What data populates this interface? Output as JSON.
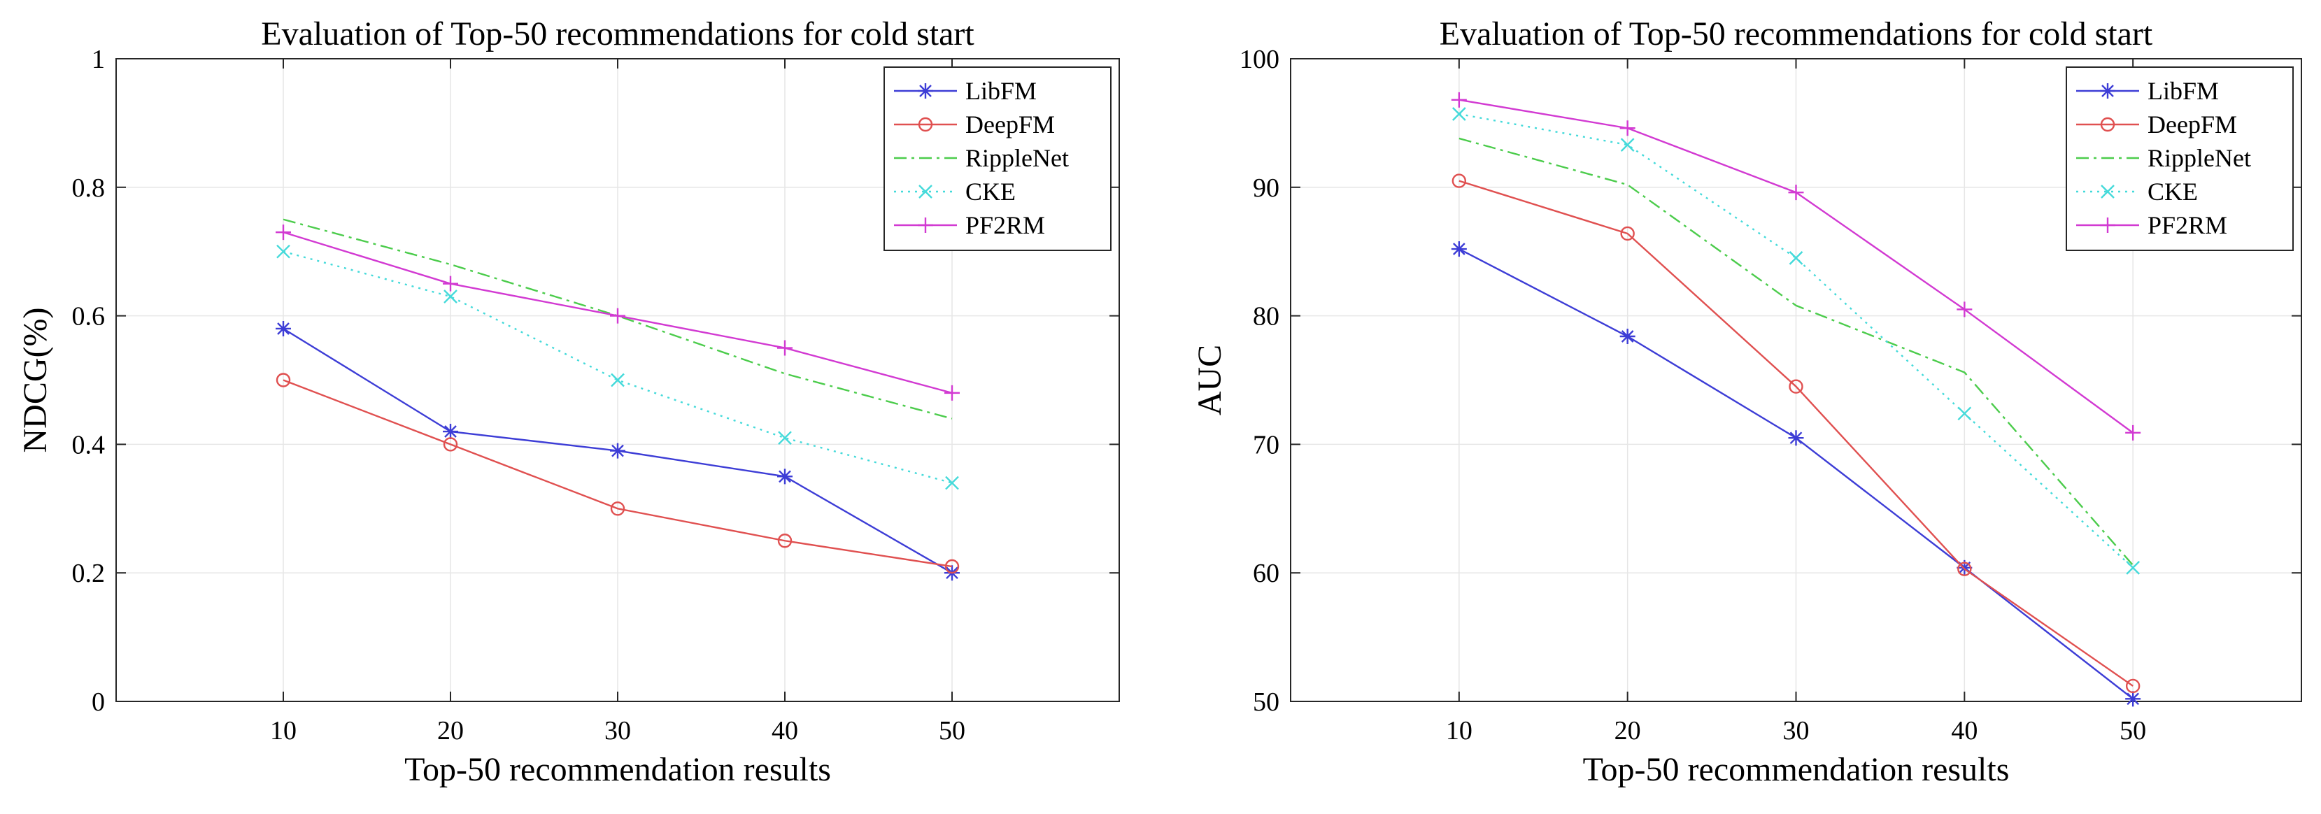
{
  "chart_data": [
    {
      "type": "line",
      "title": "Evaluation of Top-50 recommendations for cold start",
      "xlabel": "Top-50 recommendation results",
      "ylabel": "NDCG(%)",
      "xlim": [
        0,
        60
      ],
      "ylim": [
        0,
        1
      ],
      "x": [
        10,
        20,
        30,
        40,
        50
      ],
      "x_ticks": [
        "10",
        "20",
        "30",
        "40",
        "50"
      ],
      "y_ticks": [
        "0",
        "0.2",
        "0.4",
        "0.6",
        "0.8",
        "1"
      ],
      "y_tick_values": [
        0,
        0.2,
        0.4,
        0.6,
        0.8,
        1
      ],
      "grid": true,
      "legend_position": "top-right",
      "series": [
        {
          "name": "LibFM",
          "color": "#3d3dd6",
          "marker": "asterisk",
          "dash": "solid",
          "values": [
            0.58,
            0.42,
            0.39,
            0.35,
            0.2
          ]
        },
        {
          "name": "DeepFM",
          "color": "#e05050",
          "marker": "circle",
          "dash": "solid",
          "values": [
            0.5,
            0.4,
            0.3,
            0.25,
            0.21
          ]
        },
        {
          "name": "RippleNet",
          "color": "#4ccc4c",
          "marker": "none",
          "dash": "dashdot",
          "values": [
            0.75,
            0.68,
            0.6,
            0.51,
            0.44
          ]
        },
        {
          "name": "CKE",
          "color": "#44dada",
          "marker": "x",
          "dash": "dotted",
          "values": [
            0.7,
            0.63,
            0.5,
            0.41,
            0.34
          ]
        },
        {
          "name": "PF2RM",
          "color": "#d23ad2",
          "marker": "plus",
          "dash": "solid",
          "values": [
            0.73,
            0.65,
            0.6,
            0.55,
            0.48
          ]
        }
      ]
    },
    {
      "type": "line",
      "title": "Evaluation of Top-50 recommendations for cold start",
      "xlabel": "Top-50 recommendation results",
      "ylabel": "AUC",
      "xlim": [
        0,
        60
      ],
      "ylim": [
        50,
        100
      ],
      "x": [
        10,
        20,
        30,
        40,
        50
      ],
      "x_ticks": [
        "10",
        "20",
        "30",
        "40",
        "50"
      ],
      "y_ticks": [
        "50",
        "60",
        "70",
        "80",
        "90",
        "100"
      ],
      "y_tick_values": [
        50,
        60,
        70,
        80,
        90,
        100
      ],
      "grid": true,
      "legend_position": "top-right",
      "series": [
        {
          "name": "LibFM",
          "color": "#3d3dd6",
          "marker": "asterisk",
          "dash": "solid",
          "values": [
            85.2,
            78.4,
            70.5,
            60.4,
            50.2
          ]
        },
        {
          "name": "DeepFM",
          "color": "#e05050",
          "marker": "circle",
          "dash": "solid",
          "values": [
            90.5,
            86.4,
            74.5,
            60.3,
            51.2
          ]
        },
        {
          "name": "RippleNet",
          "color": "#4ccc4c",
          "marker": "none",
          "dash": "dashdot",
          "values": [
            93.8,
            90.2,
            80.8,
            75.6,
            60.6
          ]
        },
        {
          "name": "CKE",
          "color": "#44dada",
          "marker": "x",
          "dash": "dotted",
          "values": [
            95.7,
            93.3,
            84.5,
            72.4,
            60.4
          ]
        },
        {
          "name": "PF2RM",
          "color": "#d23ad2",
          "marker": "plus",
          "dash": "solid",
          "values": [
            96.8,
            94.6,
            89.6,
            80.5,
            70.9
          ]
        }
      ]
    }
  ]
}
